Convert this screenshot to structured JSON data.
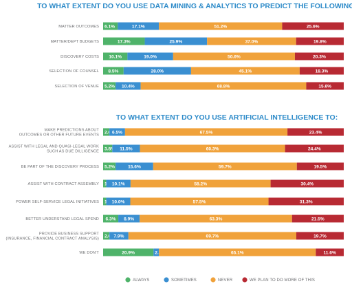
{
  "legend": [
    {
      "name": "ALWAYS",
      "color": "#4fb36a"
    },
    {
      "name": "SOMETIMES",
      "color": "#3a8fd1"
    },
    {
      "name": "NEVER",
      "color": "#f0a23b"
    },
    {
      "name": "WE PLAN TO DO MORE OF THIS",
      "color": "#b82a33"
    }
  ],
  "chart_data": [
    {
      "type": "bar",
      "orientation": "horizontal",
      "stacked": true,
      "title": "TO WHAT EXTENT DO YOU USE DATA MINING & ANALYTICS TO PREDICT THE FOLLOWING?",
      "categories": [
        "MATTER OUTCOMES",
        "MATTER/DEPT BUDGETS",
        "DISCOVERY COSTS",
        "SELECTION OF COUNSEL",
        "SELECTION OF VENUE"
      ],
      "series": [
        {
          "name": "ALWAYS",
          "values": [
            6.1,
            17.3,
            10.1,
            8.5,
            5.2
          ]
        },
        {
          "name": "SOMETIMES",
          "values": [
            17.1,
            25.9,
            19.0,
            28.0,
            10.4
          ]
        },
        {
          "name": "NEVER",
          "values": [
            51.2,
            37.0,
            50.6,
            45.1,
            68.8
          ]
        },
        {
          "name": "WE PLAN TO DO MORE OF THIS",
          "values": [
            25.6,
            19.8,
            20.3,
            18.3,
            15.6
          ]
        }
      ],
      "labels": [
        [
          "6.1%",
          "17.1%",
          "51.2%",
          "25.6%"
        ],
        [
          "17.3%",
          "25.9%",
          "37.0%",
          "19.8%"
        ],
        [
          "10.1%",
          "19.0%",
          "50.6%",
          "20.3%"
        ],
        [
          "8.5%",
          "28.0%",
          "45.1%",
          "18.3%"
        ],
        [
          "5.2%",
          "10.4%",
          "68.8%",
          "15.6%"
        ]
      ],
      "legend_position": "bottom",
      "grid": false
    },
    {
      "type": "bar",
      "orientation": "horizontal",
      "stacked": true,
      "title": "TO WHAT EXTENT DO YOU USE ARTIFICIAL INTELLIGENCE TO:",
      "categories": [
        [
          "MAKE PREDICTIONS ABOUT",
          "OUTCOMES OR OTHER FUTURE EVENTS"
        ],
        [
          "ASSIST WITH LEGAL AND QUASI-LEGAL WORK",
          "SUCH AS DUE DILLIGENCE"
        ],
        [
          "BE PART OF THE DISCOVERY PROCESS"
        ],
        [
          "ASSIST WITH CONTRACT ASSEMBLY"
        ],
        [
          "POWER SELF-SERVICE LEGAL INITIATIVES"
        ],
        [
          "BETTER UNDERSTAND LEGAL SPEND"
        ],
        [
          "PROVIDE BUSINESS SUPPORT",
          "(INSURANCE, FINANCIAL CONTRACT ANALYSIS)"
        ],
        [
          "WE DON'T"
        ]
      ],
      "series": [
        {
          "name": "ALWAYS",
          "values": [
            2.6,
            3.8,
            5.2,
            1.3,
            1.3,
            6.3,
            2.6,
            20.9
          ]
        },
        {
          "name": "SOMETIMES",
          "values": [
            6.5,
            11.5,
            15.6,
            10.1,
            10.0,
            8.9,
            7.9,
            2.3
          ]
        },
        {
          "name": "NEVER",
          "values": [
            67.5,
            60.3,
            59.7,
            58.2,
            57.5,
            63.3,
            69.7,
            65.1
          ]
        },
        {
          "name": "WE PLAN TO DO MORE OF THIS",
          "values": [
            23.4,
            24.4,
            19.5,
            30.4,
            31.3,
            21.5,
            19.7,
            11.6
          ]
        }
      ],
      "labels": [
        [
          "2.6%",
          "6.5%",
          "67.5%",
          "23.4%"
        ],
        [
          "3.8%",
          "11.5%",
          "60.3%",
          "24.4%"
        ],
        [
          "5.2%",
          "15.6%",
          "59.7%",
          "19.5%"
        ],
        [
          "1.3%",
          "10.1%",
          "58.2%",
          "30.4%"
        ],
        [
          "1.3%",
          "10.0%",
          "57.5%",
          "31.3%"
        ],
        [
          "6.3%",
          "8.9%",
          "63.3%",
          "21.5%"
        ],
        [
          "2.6%",
          "7.9%",
          "69.7%",
          "19.7%"
        ],
        [
          "20.9%",
          "2.3%",
          "65.1%",
          "11.6%"
        ]
      ],
      "legend_position": "bottom",
      "grid": false
    }
  ]
}
